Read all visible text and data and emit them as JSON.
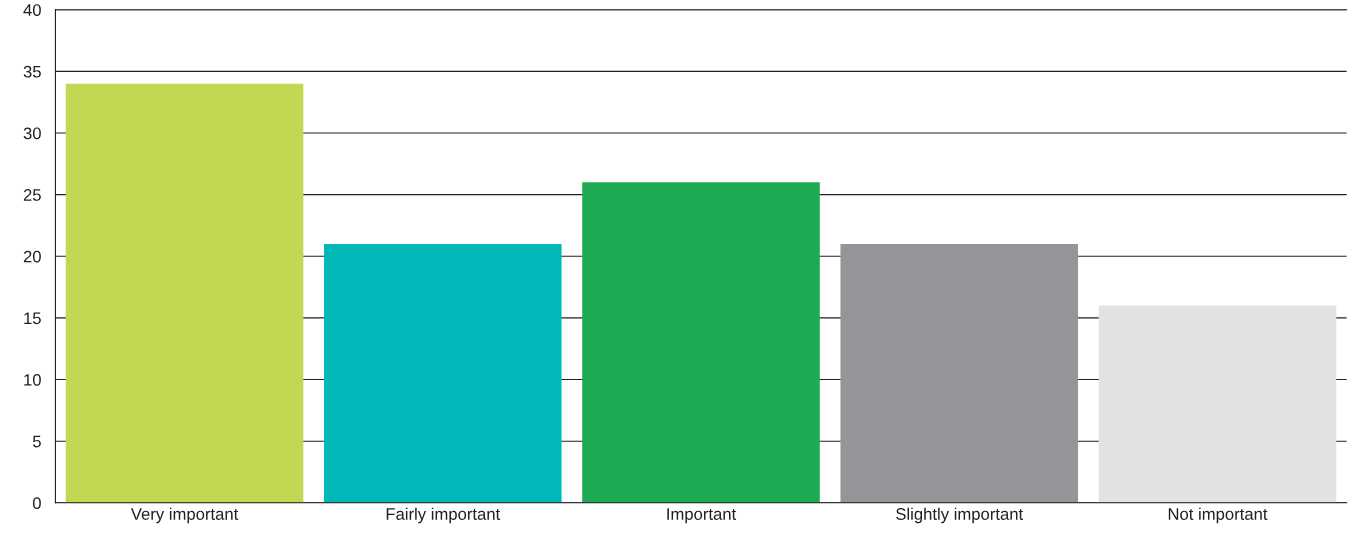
{
  "chart_data": {
    "type": "bar",
    "categories": [
      "Very important",
      "Fairly important",
      "Important",
      "Slightly important",
      "Not important"
    ],
    "values": [
      34,
      21,
      26,
      21,
      16
    ],
    "colors": [
      "#c1d952",
      "#00b8b8",
      "#1caa52",
      "#939598",
      "#e1e2e3"
    ],
    "ylim": [
      0,
      40
    ],
    "yticks": [
      0,
      5,
      10,
      15,
      20,
      25,
      30,
      35,
      40
    ],
    "grid": "y"
  }
}
